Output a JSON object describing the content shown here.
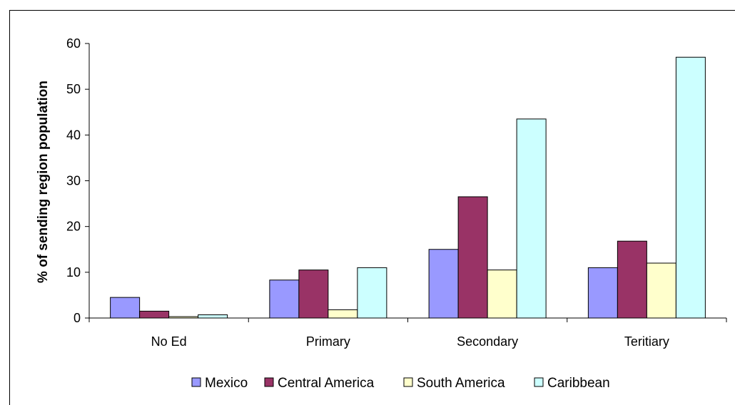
{
  "chart_data": {
    "type": "bar",
    "title": "",
    "xlabel": "",
    "ylabel": "% of sending region population",
    "categories": [
      "No Ed",
      "Primary",
      "Secondary",
      "Teritiary"
    ],
    "series": [
      {
        "name": "Mexico",
        "color": "#9999ff",
        "values": [
          4.5,
          8.3,
          15.0,
          11.0
        ]
      },
      {
        "name": "Central America",
        "color": "#993366",
        "values": [
          1.5,
          10.5,
          26.5,
          16.8
        ]
      },
      {
        "name": "South America",
        "color": "#ffffcc",
        "values": [
          0.3,
          1.8,
          10.5,
          12.0
        ]
      },
      {
        "name": "Caribbean",
        "color": "#ccffff",
        "values": [
          0.7,
          11.0,
          43.5,
          57.0
        ]
      }
    ],
    "ylim": [
      0,
      60
    ],
    "yticks": [
      "0",
      "10",
      "20",
      "30",
      "40",
      "50",
      "60"
    ],
    "grid": false,
    "legend_position": "bottom"
  }
}
